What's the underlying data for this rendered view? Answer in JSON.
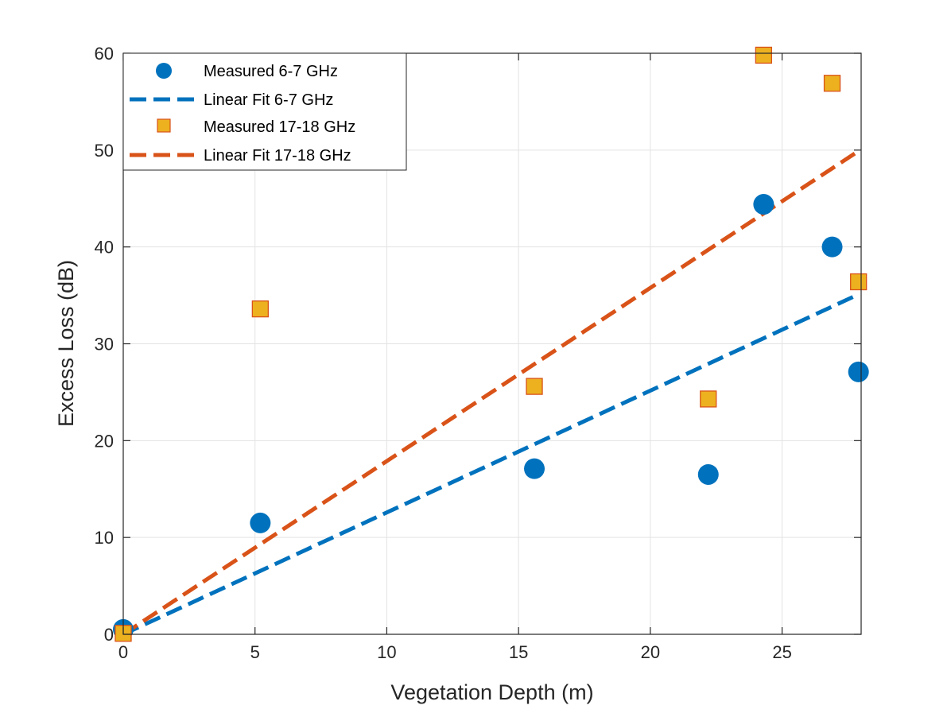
{
  "chart_data": {
    "type": "scatter",
    "title": "",
    "xlabel": "Vegetation Depth (m)",
    "ylabel": "Excess Loss (dB)",
    "xlim": [
      0,
      28
    ],
    "ylim": [
      0,
      60
    ],
    "xticks": [
      0,
      5,
      10,
      15,
      20,
      25
    ],
    "yticks": [
      0,
      10,
      20,
      30,
      40,
      50,
      60
    ],
    "grid": true,
    "legend_position": "top-left",
    "series": [
      {
        "name": "Measured 6-7 GHz",
        "kind": "scatter",
        "marker": "circle",
        "color": "#0072BD",
        "x": [
          0,
          5.2,
          15.6,
          22.2,
          24.3,
          26.9,
          27.9
        ],
        "y": [
          0.5,
          11.5,
          17.1,
          16.5,
          44.4,
          40.0,
          27.1
        ]
      },
      {
        "name": "Linear Fit 6-7 GHz",
        "kind": "line",
        "dash": "dashed",
        "color": "#0072BD",
        "x": [
          0,
          27.9
        ],
        "y": [
          0,
          35.1
        ]
      },
      {
        "name": "Measured 17-18 GHz",
        "kind": "scatter",
        "marker": "square",
        "color": "#EDB120",
        "edge_color": "#D95319",
        "x": [
          0,
          5.2,
          15.6,
          22.2,
          24.3,
          26.9,
          27.9
        ],
        "y": [
          0.1,
          33.6,
          25.6,
          24.3,
          59.8,
          56.9,
          36.4
        ]
      },
      {
        "name": "Linear Fit 17-18 GHz",
        "kind": "line",
        "dash": "dashed",
        "color": "#D95319",
        "x": [
          0,
          27.9
        ],
        "y": [
          0,
          49.9
        ]
      }
    ]
  }
}
